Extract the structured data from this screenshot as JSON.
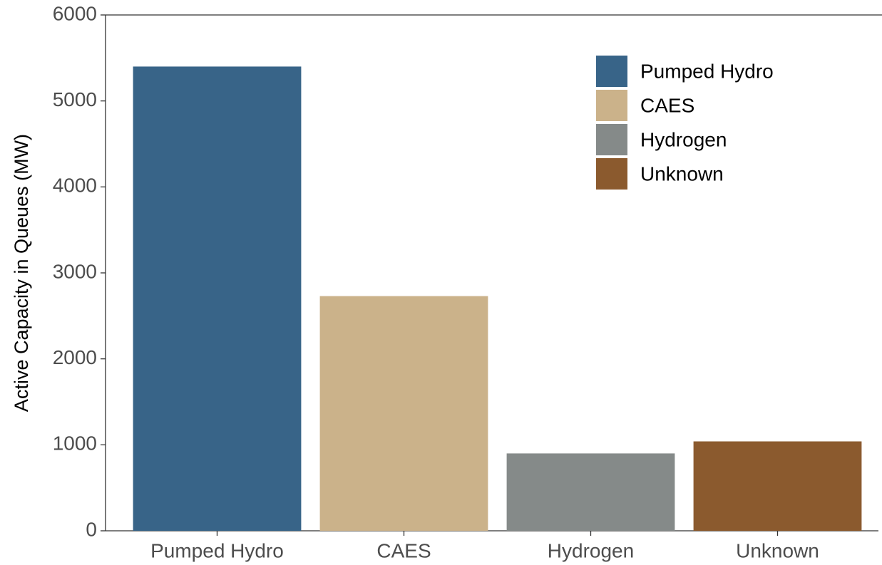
{
  "chart_data": {
    "type": "bar",
    "y_axis_label": "Active Capacity in Queues (MW)",
    "categories": [
      "Pumped Hydro",
      "CAES",
      "Hydrogen",
      "Unknown"
    ],
    "values": [
      5400,
      2730,
      900,
      1040
    ],
    "colors": [
      "#386488",
      "#cbb28a",
      "#858a89",
      "#8b5a2e"
    ],
    "ylim": [
      0,
      6000
    ],
    "yticks": [
      0,
      1000,
      2000,
      3000,
      4000,
      5000,
      6000
    ],
    "legend": "top-right",
    "grid": false
  }
}
